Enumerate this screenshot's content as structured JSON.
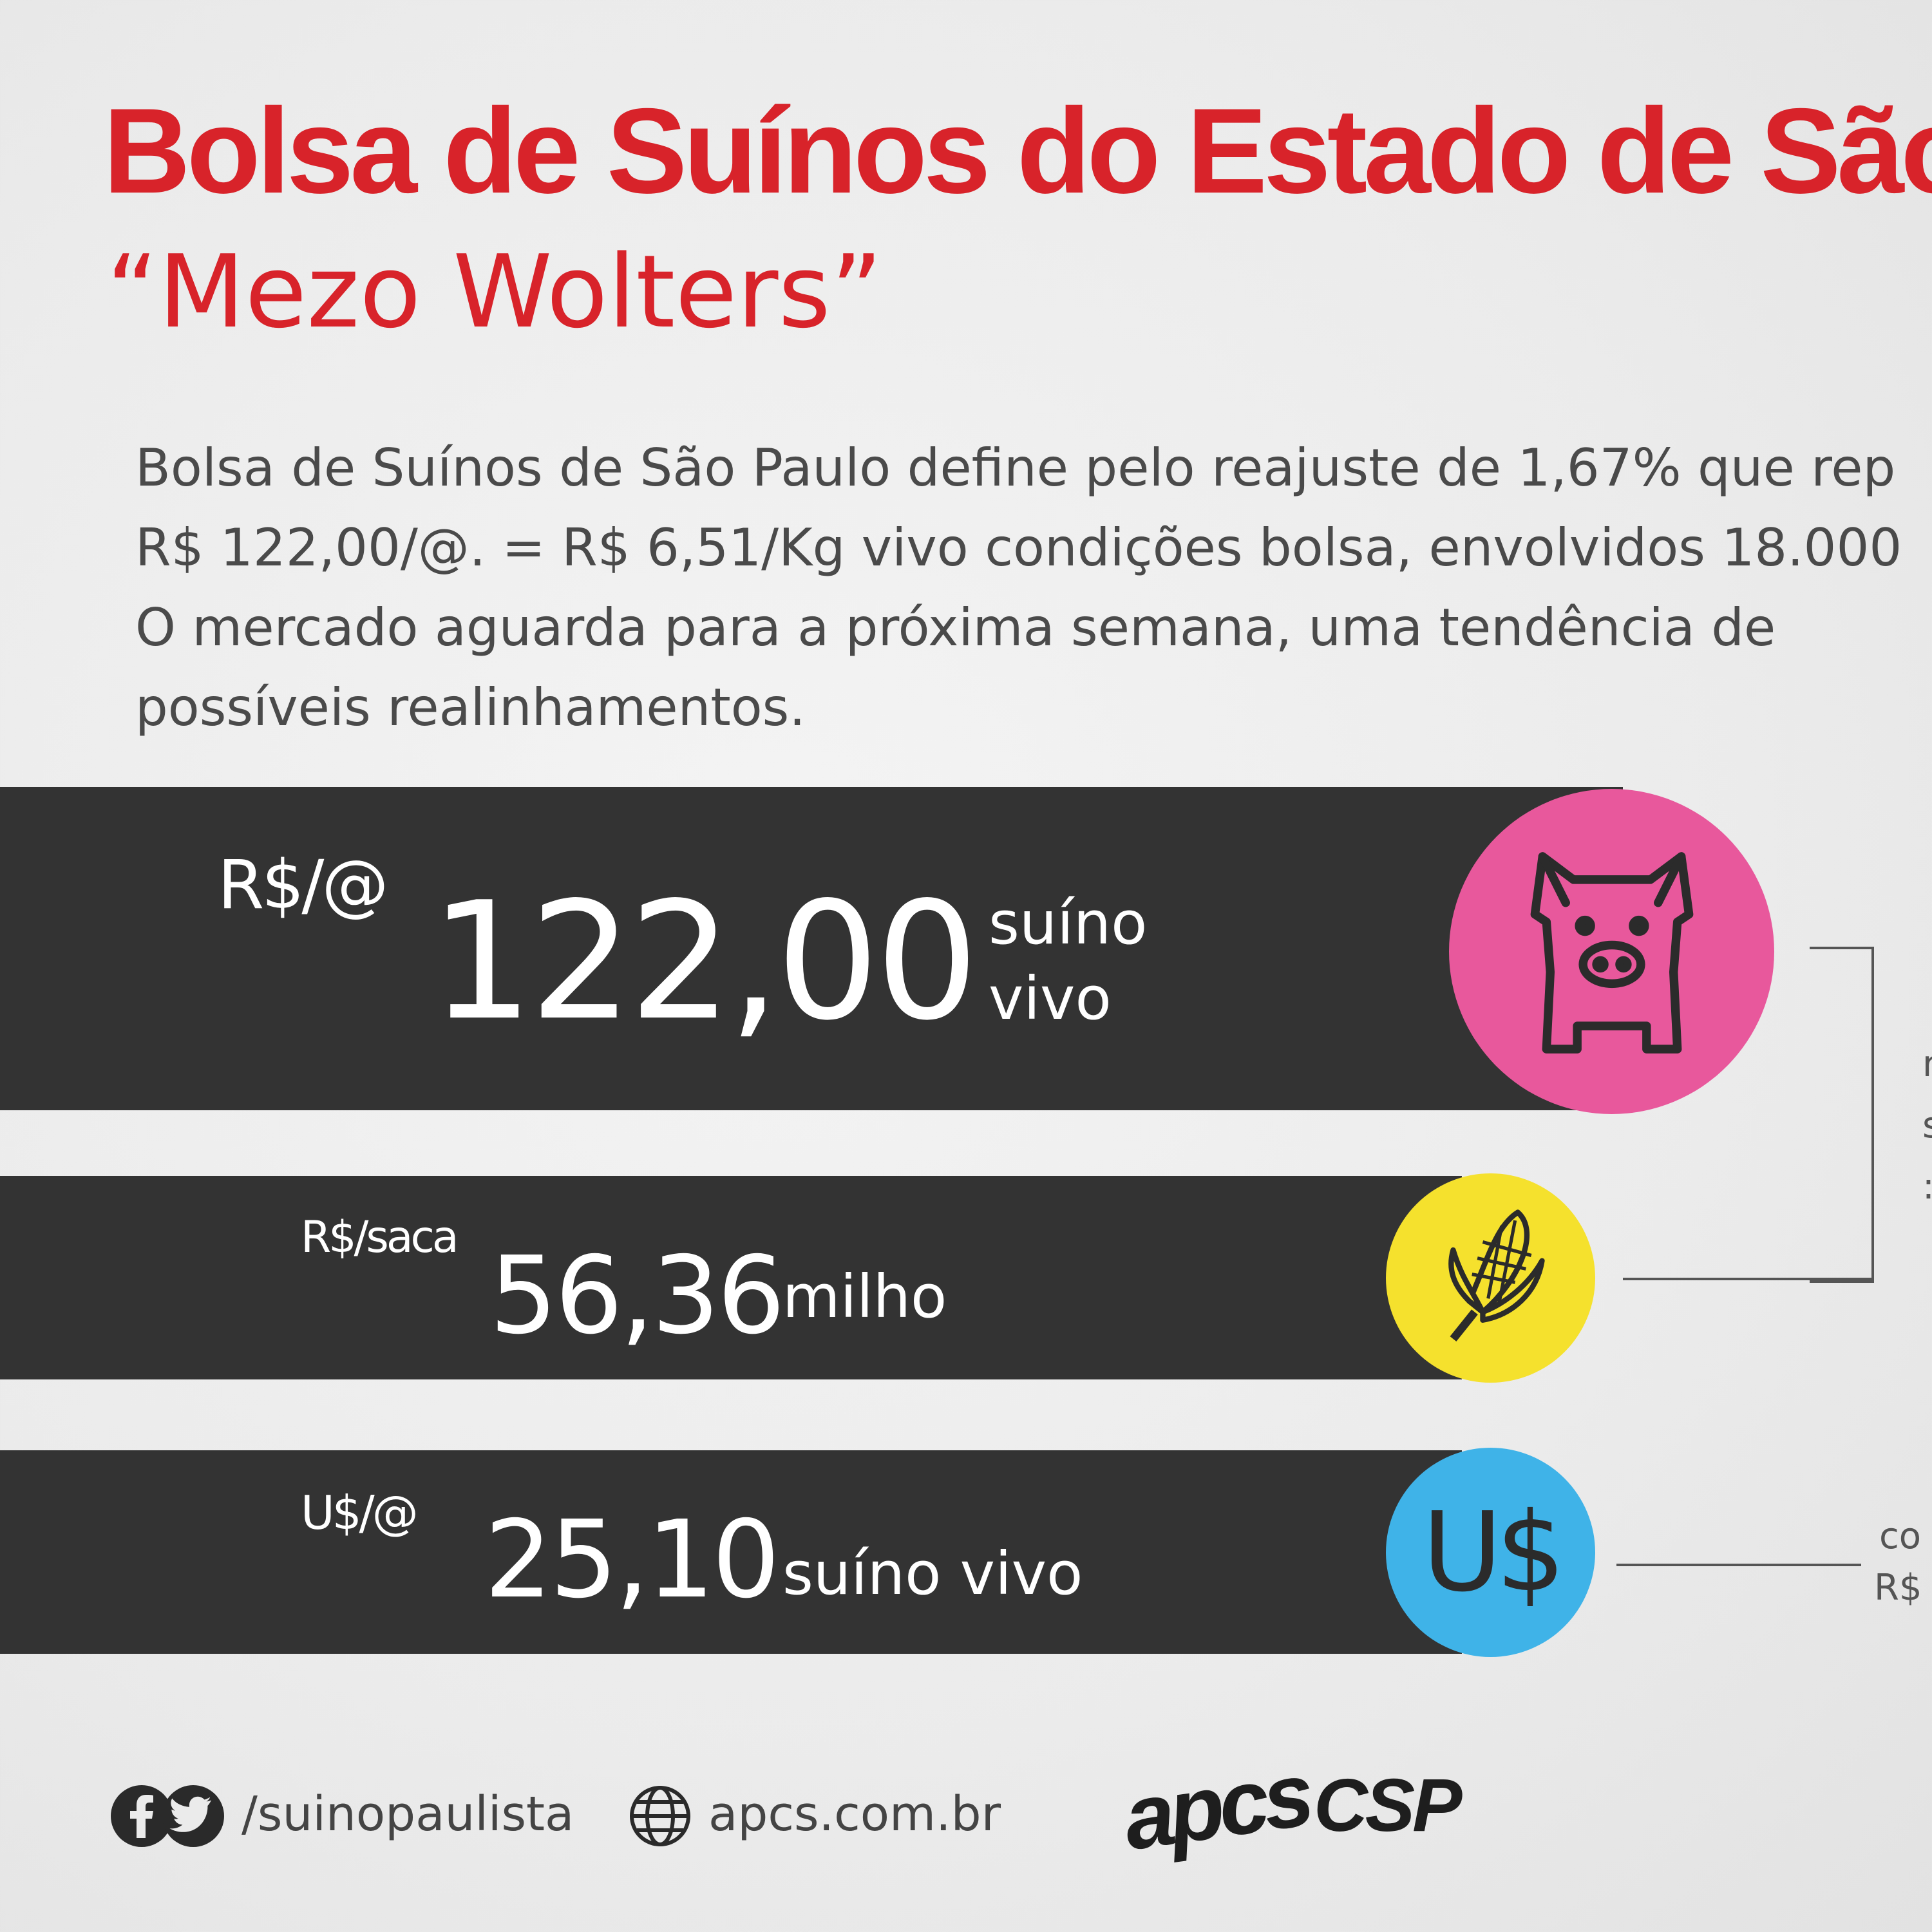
{
  "header": {
    "title_line1": "Bolsa de Suínos do  Estado de São",
    "title_line2": "“Mezo Wolters”"
  },
  "intro": {
    "lines": [
      "Bolsa de Suínos de São Paulo define pelo reajuste de 1,67% que rep",
      "R$ 122,00/@. = R$ 6,51/Kg vivo condições bolsa, envolvidos 18.000",
      "O mercado aguarda para a próxima semana, uma tendência de",
      "possíveis realinhamentos."
    ]
  },
  "quotes": [
    {
      "unit": "R$/@",
      "value": "122,00",
      "label_line1": "suíno",
      "label_line2": "vivo",
      "icon": "pig-icon",
      "color": "#e8589c"
    },
    {
      "unit": "R$/saca",
      "value": "56,36",
      "label": "milho",
      "icon": "corn-icon",
      "color": "#f5e12d"
    },
    {
      "unit": "U$/@",
      "value": "25,10",
      "label": "suíno vivo",
      "icon": "dollar-icon",
      "icon_text": "U$",
      "color": "#3fb3e8"
    }
  ],
  "side_notes": {
    "cut_top": [
      "r",
      "s",
      ":"
    ],
    "cut_bottom": [
      "co",
      "R$"
    ]
  },
  "footer": {
    "social_handle": "/suinopaulista",
    "website": "apcs.com.br",
    "logos": [
      "apcs",
      "CSP"
    ]
  }
}
